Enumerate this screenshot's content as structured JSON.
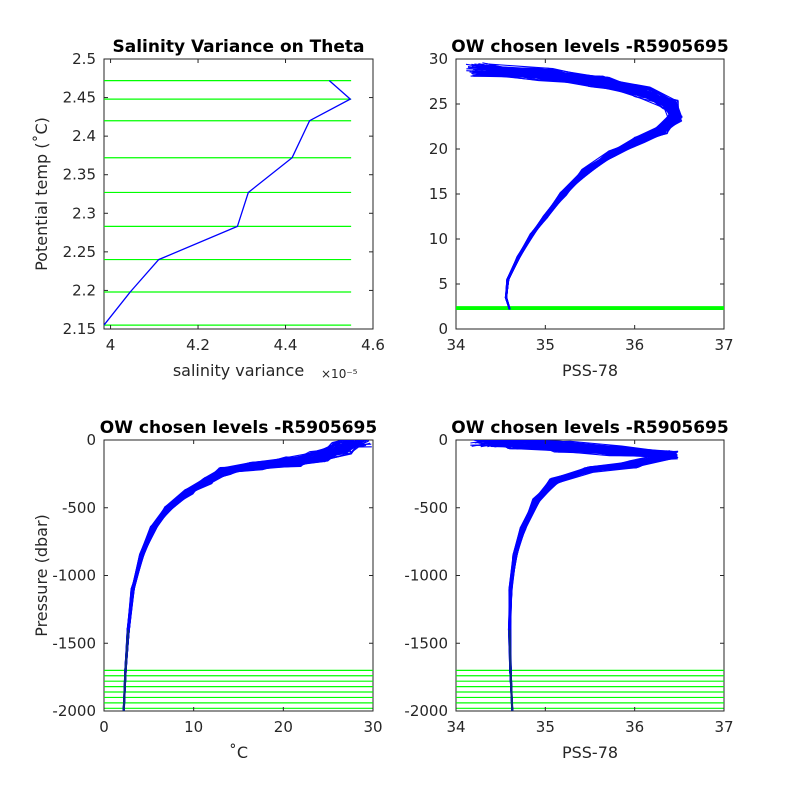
{
  "colors": {
    "profile": "#0000ff",
    "levels": "#00ff00",
    "axis": "#262626",
    "profile_dark": "#0a2a80"
  },
  "chart_data": [
    {
      "id": "p1",
      "type": "line",
      "title": "Salinity Variance on Theta",
      "xlabel": "salinity variance",
      "x_exponent": "×10⁻⁵",
      "ylabel": "Potential temp (˚C)",
      "xlim": [
        3.985,
        4.6
      ],
      "ylim": [
        2.15,
        2.5
      ],
      "xticks": [
        "4",
        "4.2",
        "4.4",
        "4.6"
      ],
      "xtick_values": [
        4.0,
        4.2,
        4.4,
        4.6
      ],
      "yticks": [
        "2.15",
        "2.2",
        "2.25",
        "2.3",
        "2.35",
        "2.4",
        "2.45",
        "2.5"
      ],
      "ytick_values": [
        2.15,
        2.2,
        2.25,
        2.3,
        2.35,
        2.4,
        2.45,
        2.5
      ],
      "series": [
        {
          "x": [
            3.985,
            4.045,
            4.11,
            4.29,
            4.315,
            4.415,
            4.455,
            4.548,
            4.5
          ],
          "y": [
            2.155,
            2.198,
            2.24,
            2.283,
            2.327,
            2.372,
            2.42,
            2.448,
            2.472
          ]
        }
      ],
      "hlines": [
        2.155,
        2.198,
        2.24,
        2.283,
        2.327,
        2.372,
        2.42,
        2.448,
        2.472
      ],
      "hline_xrange": [
        3.985,
        4.55
      ]
    },
    {
      "id": "p2",
      "type": "line",
      "title": "OW chosen levels -R5905695",
      "xlabel": "PSS-78",
      "ylabel": "",
      "xlim": [
        34,
        37
      ],
      "ylim": [
        0,
        30
      ],
      "xticks": [
        "34",
        "35",
        "36",
        "37"
      ],
      "xtick_values": [
        34,
        35,
        36,
        37
      ],
      "yticks": [
        "0",
        "5",
        "10",
        "15",
        "20",
        "25",
        "30"
      ],
      "ytick_values": [
        0,
        5,
        10,
        15,
        20,
        25,
        30
      ],
      "profile_shape": {
        "x": [
          34.6,
          34.56,
          34.58,
          34.7,
          34.85,
          35.0,
          35.2,
          35.45,
          35.75,
          36.05,
          36.3,
          36.45,
          36.4,
          36.1,
          35.6,
          35.0,
          34.25
        ],
        "y": [
          2.2,
          3.5,
          5.5,
          8.0,
          10.5,
          12.5,
          15.0,
          17.5,
          19.5,
          21.0,
          22.0,
          23.5,
          25.0,
          26.3,
          27.5,
          28.3,
          28.8
        ]
      },
      "hlines": [
        2.2,
        2.25,
        2.3,
        2.35,
        2.4,
        2.45
      ],
      "hline_xrange": [
        34,
        37
      ]
    },
    {
      "id": "p3",
      "type": "line",
      "title": "OW chosen levels -R5905695",
      "xlabel": "˚C",
      "ylabel": "Pressure (dbar)",
      "xlim": [
        0,
        30
      ],
      "ylim": [
        -2000,
        0
      ],
      "xticks": [
        "0",
        "10",
        "20",
        "30"
      ],
      "xtick_values": [
        0,
        10,
        20,
        30
      ],
      "yticks": [
        "-2000",
        "-1500",
        "-1000",
        "-500",
        "0"
      ],
      "ytick_values": [
        -2000,
        -1500,
        -1000,
        -500,
        0
      ],
      "profile_shape": {
        "x": [
          2.2,
          2.4,
          2.7,
          3.2,
          4.2,
          5.5,
          7.2,
          9.5,
          11.5,
          13.5,
          17.0,
          21.0,
          24.0,
          26.5,
          28.5
        ],
        "y": [
          -2000,
          -1700,
          -1400,
          -1100,
          -850,
          -650,
          -500,
          -380,
          -300,
          -230,
          -190,
          -160,
          -120,
          -60,
          0
        ]
      },
      "hlines": [
        -1700,
        -1740,
        -1780,
        -1820,
        -1860,
        -1900,
        -1940,
        -1980
      ],
      "hline_xrange": [
        0,
        30
      ]
    },
    {
      "id": "p4",
      "type": "line",
      "title": "OW chosen levels -R5905695",
      "xlabel": "PSS-78",
      "ylabel": "",
      "xlim": [
        34,
        37
      ],
      "ylim": [
        -2000,
        0
      ],
      "xticks": [
        "34",
        "35",
        "36",
        "37"
      ],
      "xtick_values": [
        34,
        35,
        36,
        37
      ],
      "yticks": [
        "-2000",
        "-1500",
        "-1000",
        "-500",
        "0"
      ],
      "ytick_values": [
        -2000,
        -1500,
        -1000,
        -500,
        0
      ],
      "profile_shape": {
        "x": [
          34.63,
          34.61,
          34.6,
          34.61,
          34.66,
          34.75,
          34.9,
          35.1,
          35.5,
          36.0,
          36.4,
          35.8,
          35.2,
          34.7,
          34.3
        ],
        "y": [
          -2000,
          -1700,
          -1400,
          -1100,
          -850,
          -650,
          -450,
          -300,
          -220,
          -180,
          -110,
          -80,
          -50,
          -20,
          0
        ]
      },
      "hlines": [
        -1700,
        -1740,
        -1780,
        -1820,
        -1860,
        -1900,
        -1940,
        -1980
      ],
      "hline_xrange": [
        34,
        37
      ]
    }
  ]
}
